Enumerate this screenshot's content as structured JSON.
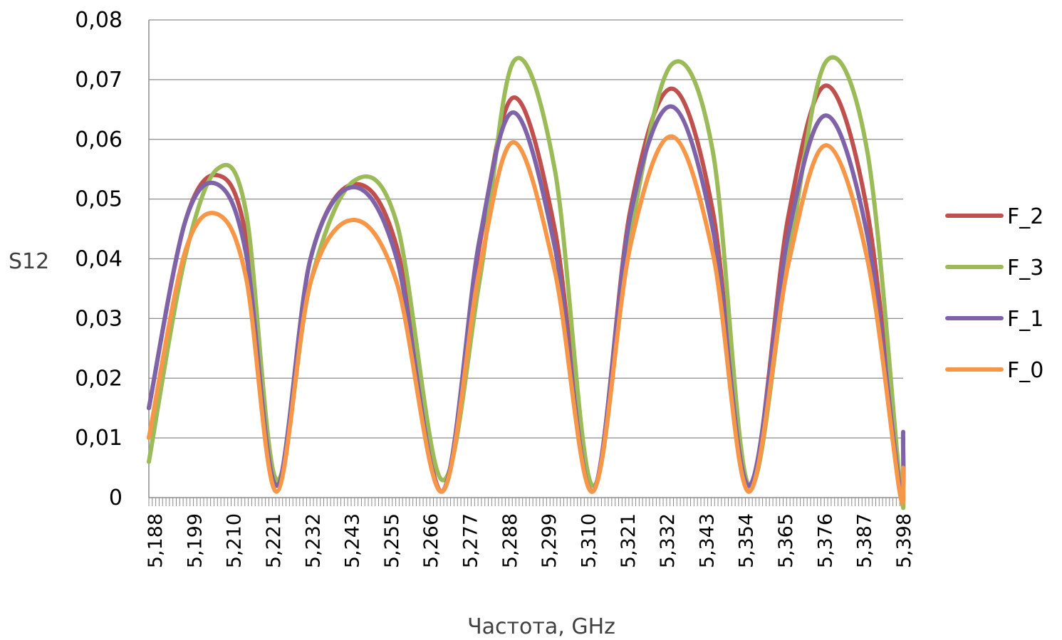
{
  "chart_data": {
    "type": "line",
    "xlabel": "Частота, GHz",
    "ylabel": "S12",
    "ylim": [
      0,
      0.08
    ],
    "yticks": [
      "0",
      "0,01",
      "0,02",
      "0,03",
      "0,04",
      "0,05",
      "0,06",
      "0,07",
      "0,08"
    ],
    "xlim": [
      5.188,
      5.398
    ],
    "xticks": [
      "5,188",
      "5,199",
      "5,210",
      "5,221",
      "5,232",
      "5,243",
      "5,255",
      "5,266",
      "5,277",
      "5,288",
      "5,299",
      "5,310",
      "5,321",
      "5,332",
      "5,343",
      "5,354",
      "5,365",
      "5,376",
      "5,387",
      "5,398"
    ],
    "grid": true,
    "legend_position": "right",
    "x": [
      5.188,
      5.198,
      5.207,
      5.215,
      5.2235,
      5.233,
      5.245,
      5.257,
      5.2695,
      5.28,
      5.2895,
      5.301,
      5.3115,
      5.322,
      5.3335,
      5.345,
      5.355,
      5.366,
      5.3765,
      5.388,
      5.397,
      5.398
    ],
    "series": [
      {
        "name": "F_2",
        "color": "#c0504d",
        "values": [
          0.015,
          0.046,
          0.054,
          0.044,
          0.002,
          0.04,
          0.0525,
          0.042,
          0.001,
          0.042,
          0.067,
          0.045,
          0.001,
          0.048,
          0.0685,
          0.048,
          0.001,
          0.047,
          0.069,
          0.048,
          0.002,
          0.01
        ]
      },
      {
        "name": "F_3",
        "color": "#9bbb59",
        "values": [
          0.006,
          0.04,
          0.055,
          0.048,
          0.003,
          0.036,
          0.053,
          0.046,
          0.003,
          0.036,
          0.073,
          0.055,
          0.002,
          0.044,
          0.0725,
          0.058,
          0.002,
          0.04,
          0.073,
          0.058,
          0.003,
          0.001
        ]
      },
      {
        "name": "F_1",
        "color": "#7f63a8",
        "values": [
          0.015,
          0.046,
          0.0525,
          0.041,
          0.002,
          0.04,
          0.052,
          0.04,
          0.001,
          0.043,
          0.0645,
          0.042,
          0.001,
          0.047,
          0.0655,
          0.045,
          0.002,
          0.044,
          0.064,
          0.044,
          0.002,
          0.011
        ]
      },
      {
        "name": "F_0",
        "color": "#f79646",
        "values": [
          0.01,
          0.041,
          0.0475,
          0.037,
          0.001,
          0.036,
          0.0465,
          0.036,
          0.001,
          0.038,
          0.0595,
          0.038,
          0.001,
          0.042,
          0.0605,
          0.041,
          0.001,
          0.039,
          0.059,
          0.04,
          0.001,
          0.005
        ]
      }
    ]
  }
}
